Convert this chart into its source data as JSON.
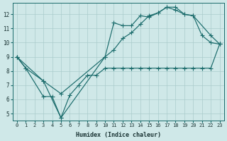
{
  "xlabel": "Humidex (Indice chaleur)",
  "ylabel": "",
  "bg_color": "#cfe8e8",
  "grid_color": "#aacccc",
  "line_color": "#1a6b6b",
  "xlim": [
    -0.5,
    23.5
  ],
  "ylim": [
    4.5,
    12.8
  ],
  "xticks": [
    0,
    1,
    2,
    3,
    4,
    5,
    6,
    7,
    8,
    9,
    10,
    11,
    12,
    13,
    14,
    15,
    16,
    17,
    18,
    19,
    20,
    21,
    22,
    23
  ],
  "yticks": [
    5,
    6,
    7,
    8,
    9,
    10,
    11,
    12
  ],
  "line1_x": [
    0,
    1,
    3,
    5,
    10,
    11,
    12,
    13,
    14,
    15,
    16,
    17,
    18,
    19,
    20,
    21,
    22,
    23
  ],
  "line1_y": [
    9.0,
    8.2,
    7.3,
    4.7,
    9.0,
    11.4,
    11.2,
    11.2,
    11.9,
    11.8,
    12.1,
    12.5,
    12.3,
    12.0,
    11.9,
    10.5,
    10.0,
    9.9
  ],
  "line2_x": [
    0,
    1,
    3,
    4,
    5,
    6,
    7,
    8,
    9,
    10,
    11,
    12,
    13,
    14,
    15,
    16,
    17,
    18,
    19,
    20,
    21,
    22,
    23
  ],
  "line2_y": [
    9.0,
    8.2,
    6.2,
    6.2,
    4.7,
    6.3,
    7.0,
    7.7,
    7.7,
    8.2,
    8.2,
    8.2,
    8.2,
    8.2,
    8.2,
    8.2,
    8.2,
    8.2,
    8.2,
    8.2,
    8.2,
    8.2,
    9.9
  ],
  "line3_x": [
    0,
    3,
    5,
    10,
    11,
    12,
    13,
    14,
    15,
    16,
    17,
    18,
    19,
    20,
    22,
    23
  ],
  "line3_y": [
    9.0,
    7.3,
    6.4,
    9.0,
    9.5,
    10.3,
    10.7,
    11.3,
    11.9,
    12.1,
    12.5,
    12.5,
    12.0,
    11.9,
    10.5,
    9.9
  ]
}
